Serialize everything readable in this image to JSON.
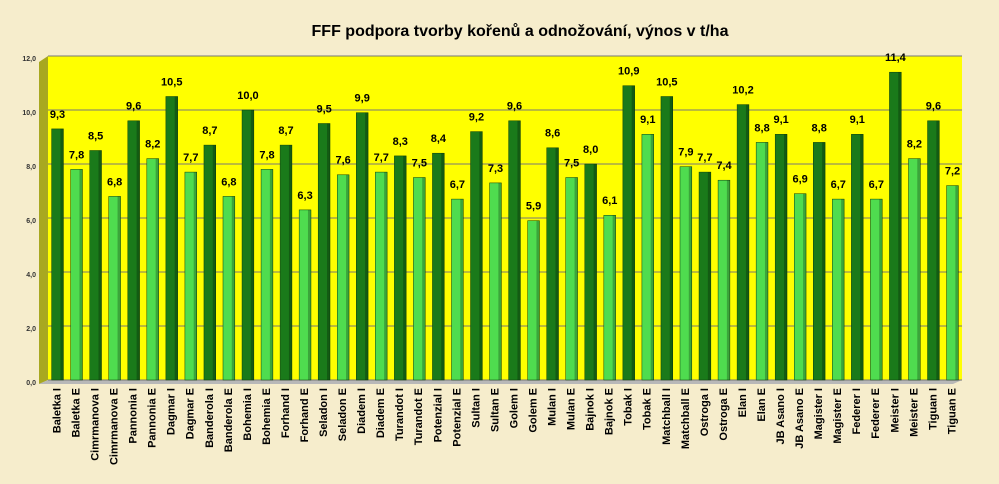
{
  "chart_data": {
    "type": "bar",
    "title": "FFF podpora tvorby kořenů a odnožování, výnos v t/ha",
    "categories": [
      "Baletka I",
      "Baletka E",
      "Cimrmanova I",
      "Cimrmanova E",
      "Pannonia I",
      "Pannonia E",
      "Dagmar I",
      "Dagmar E",
      "Banderola I",
      "Banderola E",
      "Bohemia I",
      "Bohemia E",
      "Forhand I",
      "Forhand E",
      "Seladon I",
      "Seladon E",
      "Diadem I",
      "Diadem E",
      "Turandot I",
      "Turandot E",
      "Potenzial I",
      "Potenzial E",
      "Sultan I",
      "Sultan E",
      "Golem I",
      "Golem E",
      "Mulan I",
      "Mulan E",
      "Bajnok I",
      "Bajnok E",
      "Tobak I",
      "Tobak E",
      "Matchball I",
      "Matchball E",
      "Ostroga I",
      "Ostroga E",
      "Elan I",
      "Elan E",
      "JB Asano I",
      "JB Asano E",
      "Magister I",
      "Magister E",
      "Federer I",
      "Federer E",
      "Meister I",
      "Meister E",
      "Tiguan I",
      "Tiguan E"
    ],
    "values": [
      9.3,
      7.8,
      8.5,
      6.8,
      9.6,
      8.2,
      10.5,
      7.7,
      8.7,
      6.8,
      10.0,
      7.8,
      8.7,
      6.3,
      9.5,
      7.6,
      9.9,
      7.7,
      8.3,
      7.5,
      8.4,
      6.7,
      9.2,
      7.3,
      9.6,
      5.9,
      8.6,
      7.5,
      8.0,
      6.1,
      10.9,
      9.1,
      10.5,
      7.9,
      7.7,
      7.4,
      10.2,
      8.8,
      9.1,
      6.9,
      8.8,
      6.7,
      9.1,
      6.7,
      11.4,
      8.2,
      9.6,
      7.2
    ],
    "value_labels": [
      "9,3",
      "7,8",
      "8,5",
      "6,8",
      "9,6",
      "8,2",
      "10,5",
      "7,7",
      "8,7",
      "6,8",
      "10,0",
      "7,8",
      "8,7",
      "6,3",
      "9,5",
      "7,6",
      "9,9",
      "7,7",
      "8,3",
      "7,5",
      "8,4",
      "6,7",
      "9,2",
      "7,3",
      "9,6",
      "5,9",
      "8,6",
      "7,5",
      "8,0",
      "6,1",
      "10,9",
      "9,1",
      "10,5",
      "7,9",
      "7,7",
      "7,4",
      "10,2",
      "8,8",
      "9,1",
      "6,9",
      "8,8",
      "6,7",
      "9,1",
      "6,7",
      "11,4",
      "8,2",
      "9,6",
      "7,2"
    ],
    "colors": [
      "#1a7a1a",
      "#4fdc4f"
    ],
    "ylim": [
      0,
      12
    ],
    "yticks": [
      {
        "value": 0,
        "label": "0,0"
      },
      {
        "value": 2,
        "label": "2,0"
      },
      {
        "value": 4,
        "label": "4,0"
      },
      {
        "value": 6,
        "label": "6,0"
      },
      {
        "value": 8,
        "label": "8,0"
      },
      {
        "value": 10,
        "label": "10,0"
      },
      {
        "value": 12,
        "label": "12,0"
      }
    ],
    "grid": true
  }
}
